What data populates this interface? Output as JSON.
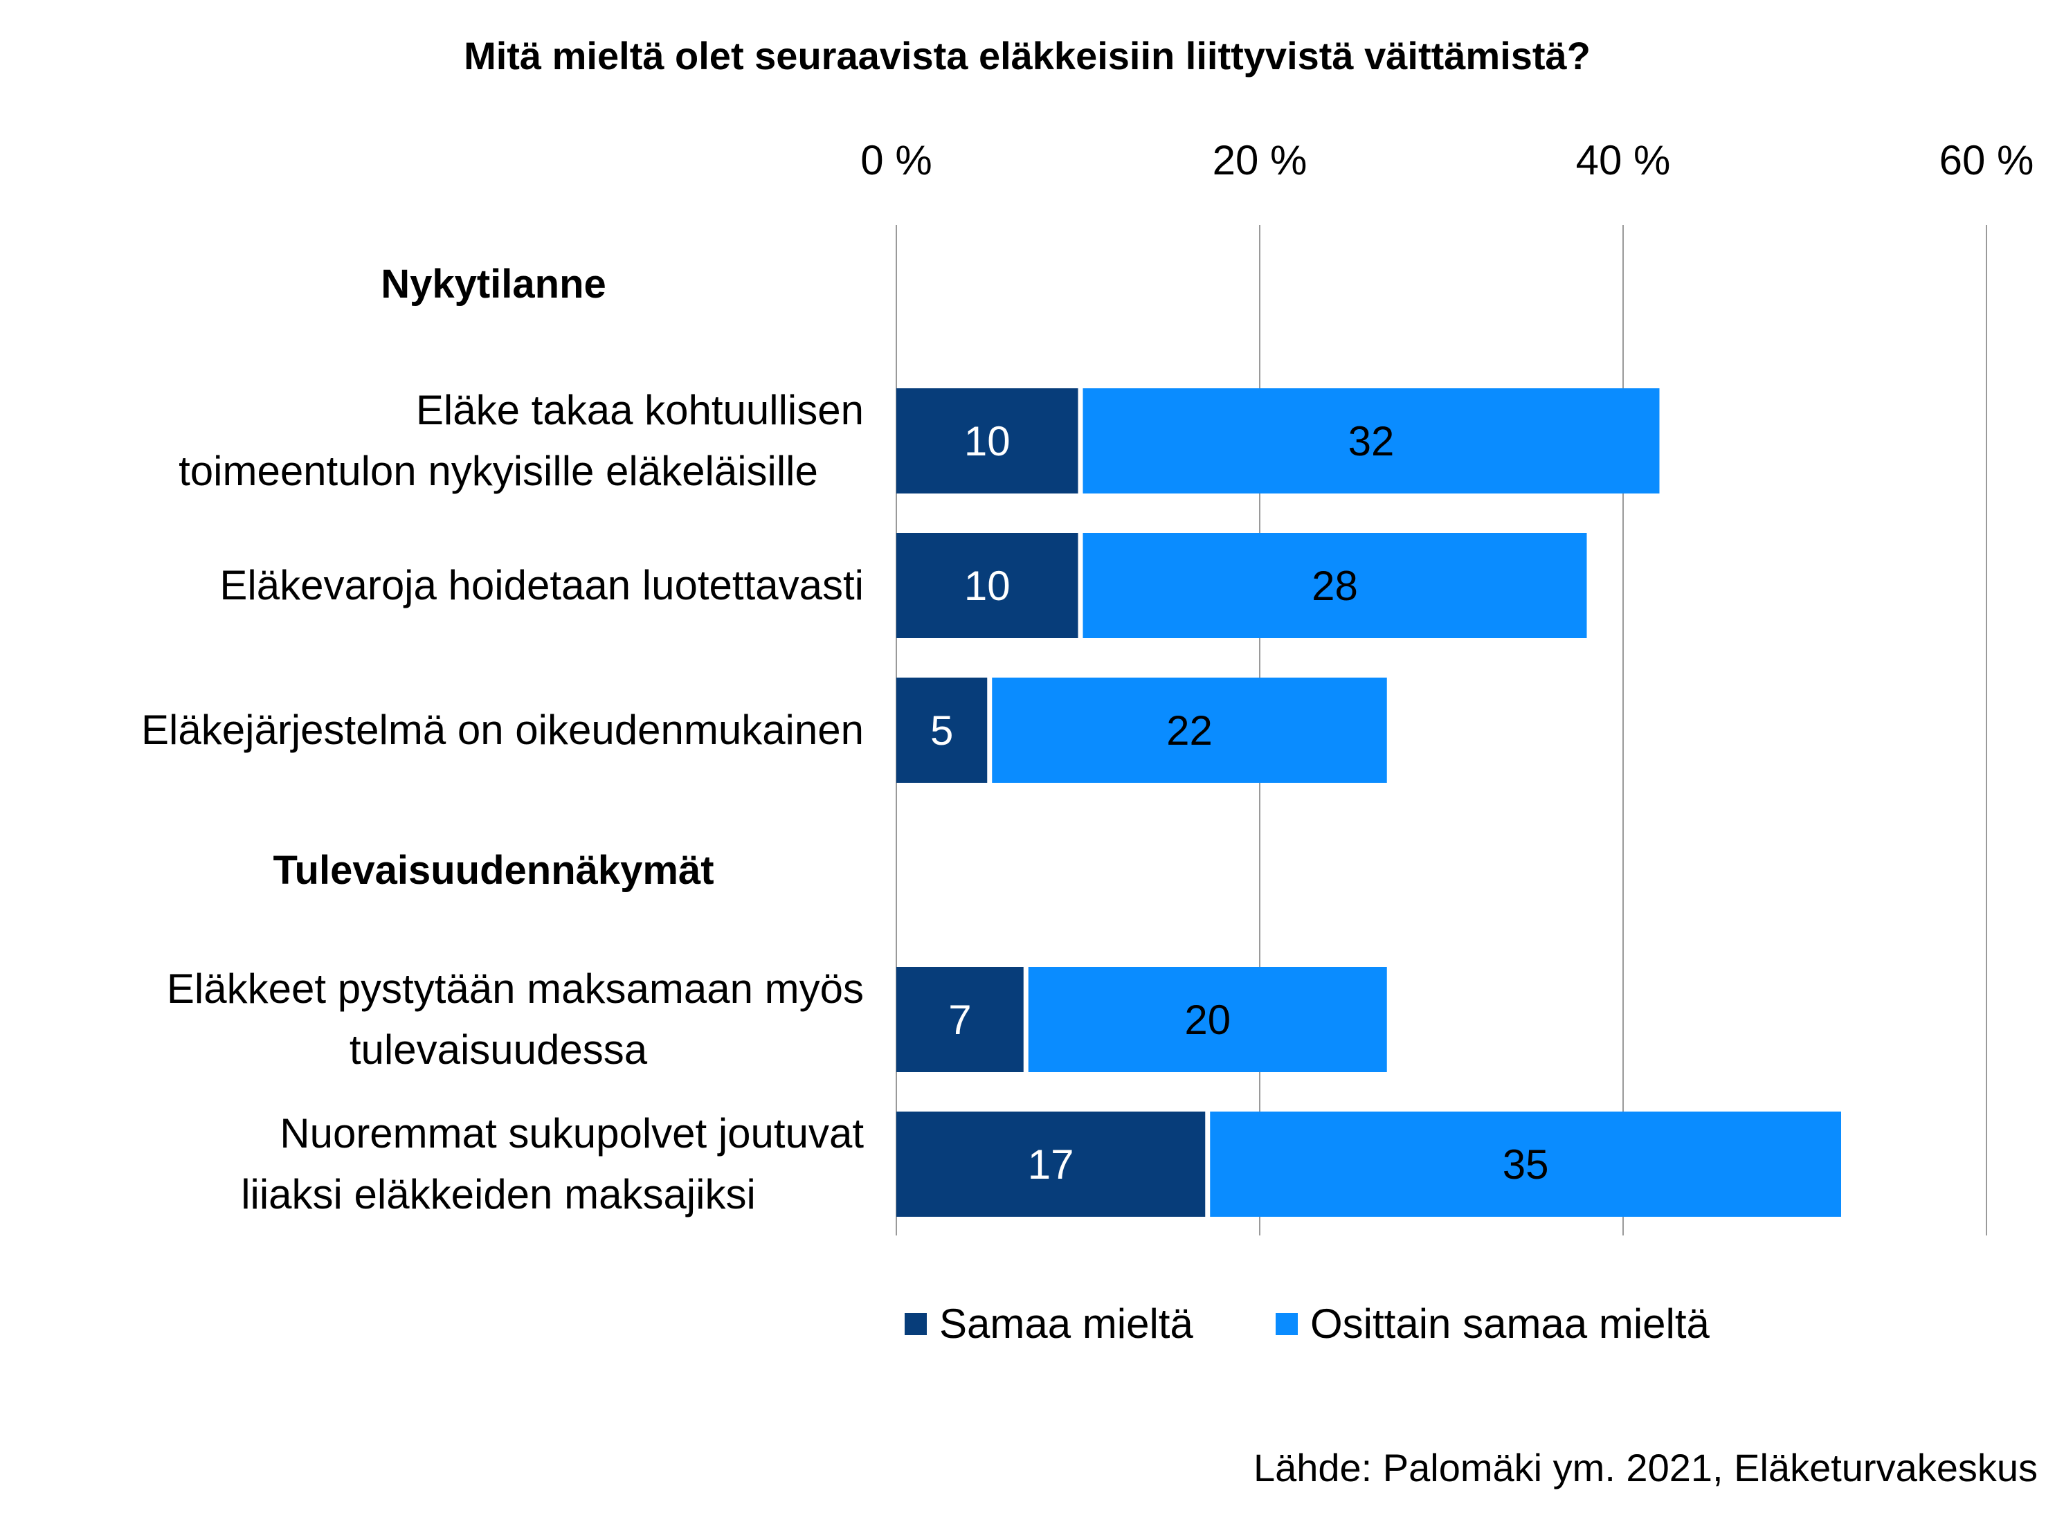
{
  "chart_data": {
    "type": "bar",
    "orientation": "horizontal",
    "stacked": true,
    "title": "Mitä mieltä olet seuraavista eläkkeisiin liittyvistä väittämistä?",
    "xlim": [
      0,
      60
    ],
    "xticks": [
      "0 %",
      "20 %",
      "40 %",
      "60 %"
    ],
    "x_axis_position": "top",
    "grid": true,
    "legend_position": "bottom",
    "groups": [
      {
        "label": "Nykytilanne",
        "categories": [
          [
            "Eläke takaa kohtuullisen",
            "toimeentulon nykyisille eläkeläisille"
          ],
          [
            "Eläkevaroja hoidetaan luotettavasti"
          ],
          [
            "Eläkejärjestelmä on oikeudenmukainen"
          ]
        ],
        "samaa": [
          10,
          10,
          5
        ],
        "osittain": [
          32,
          28,
          22
        ]
      },
      {
        "label": "Tulevaisuudennäkymät",
        "categories": [
          [
            "Eläkkeet pystytään maksamaan myös",
            "tulevaisuudessa"
          ],
          [
            "Nuoremmat sukupolvet joutuvat",
            "liiaksi eläkkeiden maksajiksi"
          ]
        ],
        "samaa": [
          7,
          17
        ],
        "osittain": [
          20,
          35
        ]
      }
    ],
    "series": [
      {
        "name": "Samaa mieltä",
        "color": "#073D7A",
        "label_color": "#ffffff"
      },
      {
        "name": "Osittain samaa mieltä",
        "color": "#0A8CFF",
        "label_color": "#000000"
      }
    ],
    "source": "Lähde: Palomäki ym. 2021, Eläketurvakeskus"
  }
}
